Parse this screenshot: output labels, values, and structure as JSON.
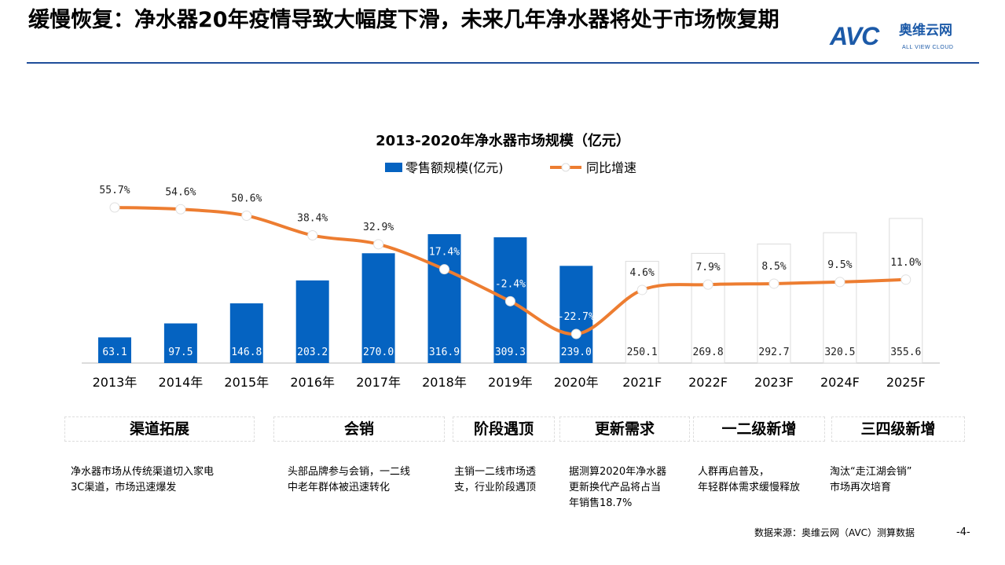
{
  "title": "缓慢恢复：净水器20年疫情导致大幅度下滑，未来几年净水器将处于市场恢复期",
  "logo": {
    "mark": "AVC",
    "cn": "奥维云网",
    "en": "ALL VIEW CLOUD"
  },
  "colors": {
    "bar": "#0563c1",
    "forecast_bar": "#ffffff",
    "line": "#ed7d31",
    "rule": "#1f4e9a"
  },
  "chart_data": {
    "type": "bar+line",
    "title": "2013-2020年净水器市场规模（亿元）",
    "legend_position": "top",
    "categories": [
      "2013年",
      "2014年",
      "2015年",
      "2016年",
      "2017年",
      "2018年",
      "2019年",
      "2020年",
      "2021F",
      "2022F",
      "2023F",
      "2024F",
      "2025F"
    ],
    "series": [
      {
        "name": "零售额规模(亿元)",
        "type": "bar",
        "values": [
          63.1,
          97.5,
          146.8,
          203.2,
          270.0,
          316.9,
          309.3,
          239.0,
          250.1,
          269.8,
          292.7,
          320.5,
          355.6
        ],
        "labels": [
          "63.1",
          "97.5",
          "146.8",
          "203.2",
          "270.0",
          "316.9",
          "309.3",
          "239.0",
          "250.1",
          "269.8",
          "292.7",
          "320.5",
          "355.6"
        ]
      },
      {
        "name": "同比增速",
        "type": "line",
        "values": [
          55.7,
          54.6,
          50.6,
          38.4,
          32.9,
          17.4,
          -2.4,
          -22.7,
          4.6,
          7.9,
          8.5,
          9.5,
          11.0
        ],
        "labels": [
          "55.7%",
          "54.6%",
          "50.6%",
          "38.4%",
          "32.9%",
          "17.4%",
          "-2.4%",
          "-22.7%",
          "4.6%",
          "7.9%",
          "8.5%",
          "9.5%",
          "11.0%"
        ]
      }
    ],
    "forecast_from_index": 8
  },
  "categories": [
    {
      "label": "渠道拓展",
      "desc": [
        "净水器市场从传统渠道切入家电",
        "3C渠道，市场迅速爆发"
      ]
    },
    {
      "label": "会销",
      "desc": [
        "头部品牌参与会销，一二线",
        "中老年群体被迅速转化"
      ]
    },
    {
      "label": "阶段遇顶",
      "desc": [
        "主销一二线市场透",
        "支，行业阶段遇顶"
      ]
    },
    {
      "label": "更新需求",
      "desc": [
        "据测算2020年净水器",
        "更新换代产品将占当",
        "年销售18.7%"
      ]
    },
    {
      "label": "一二级新增",
      "desc": [
        "人群再启普及，",
        "年轻群体需求缓慢释放"
      ]
    },
    {
      "label": "三四级新增",
      "desc": [
        "淘汰“走江湖会销”",
        "市场再次培育"
      ]
    }
  ],
  "source": "数据来源：奥维云网（AVC）测算数据",
  "page": "-4-"
}
